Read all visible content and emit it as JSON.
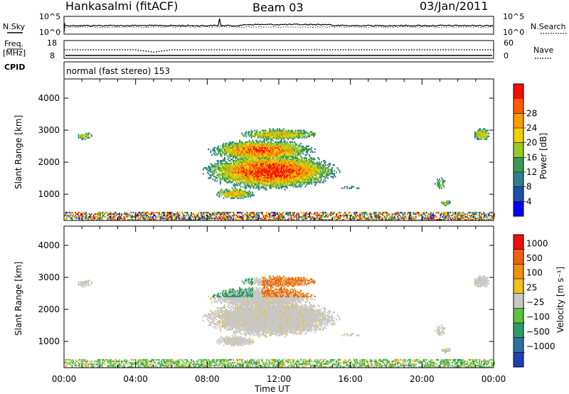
{
  "header": {
    "title": "Hankasalmi (fitACF)",
    "beam": "Beam 03",
    "date": "03/Jan/2011"
  },
  "noise_panel": {
    "left_label": "N.Sky",
    "right_label": "N.Search",
    "y_ticks_left": [
      "10^5",
      "10^0"
    ],
    "y_ticks_right": [
      "10^5",
      "10^0"
    ]
  },
  "freq_panel": {
    "left_label_top": "Freq.",
    "left_label_bottom": "[MHz]",
    "y_ticks_left": [
      "18",
      "8"
    ],
    "y_ticks_right": [
      "60",
      "0"
    ],
    "right_label": "Nave",
    "values_mhz": [
      12.8,
      12.8,
      12.8,
      12.8,
      12.8,
      11.5,
      12.8,
      12.8,
      12.8,
      12.8,
      12.8,
      12.8,
      12.8,
      12.8,
      12.8,
      12.8,
      12.8,
      12.8,
      12.8,
      12.8,
      12.8,
      12.8,
      12.8,
      12.8,
      12.8
    ]
  },
  "cpid_panel": {
    "label": "CPID",
    "mode_text": "normal (fast stereo) 153"
  },
  "chart_data": [
    {
      "type": "heatmap",
      "name": "power",
      "ylabel": "Slant Range [km]",
      "xlabel": "Time UT",
      "x_ticks": [
        "00:00",
        "04:00",
        "08:00",
        "12:00",
        "16:00",
        "20:00",
        "00:00"
      ],
      "y_ticks": [
        1000,
        2000,
        3000,
        4000
      ],
      "xlim_hours": [
        0,
        24
      ],
      "ylim_km": [
        180,
        4600
      ],
      "colorbar": {
        "label": "Power [dB]",
        "ticks": [
          4,
          8,
          12,
          16,
          20,
          24,
          28
        ],
        "colors": [
          "#0000ff",
          "#1f4fa8",
          "#2f7f8f",
          "#3a9a55",
          "#9ac82a",
          "#f0d000",
          "#ff9a00",
          "#ff5a00",
          "#f01000"
        ]
      }
    },
    {
      "type": "heatmap",
      "name": "velocity",
      "ylabel": "Slant Range [km]",
      "xlabel": "Time UT",
      "x_ticks": [
        "00:00",
        "04:00",
        "08:00",
        "12:00",
        "16:00",
        "20:00",
        "00:00"
      ],
      "y_ticks": [
        1000,
        2000,
        3000,
        4000
      ],
      "xlim_hours": [
        0,
        24
      ],
      "ylim_km": [
        180,
        4600
      ],
      "colorbar": {
        "label": "Velocity [m s⁻¹]",
        "ticks": [
          "1000",
          "500",
          "100",
          "25",
          "−25",
          "−100",
          "−500",
          "−1000"
        ],
        "colors": [
          "#2040b0",
          "#2e6fa0",
          "#2f9a6a",
          "#60c040",
          "#c8c8c4",
          "#f0c020",
          "#f09010",
          "#f06010",
          "#f01010"
        ]
      }
    }
  ]
}
